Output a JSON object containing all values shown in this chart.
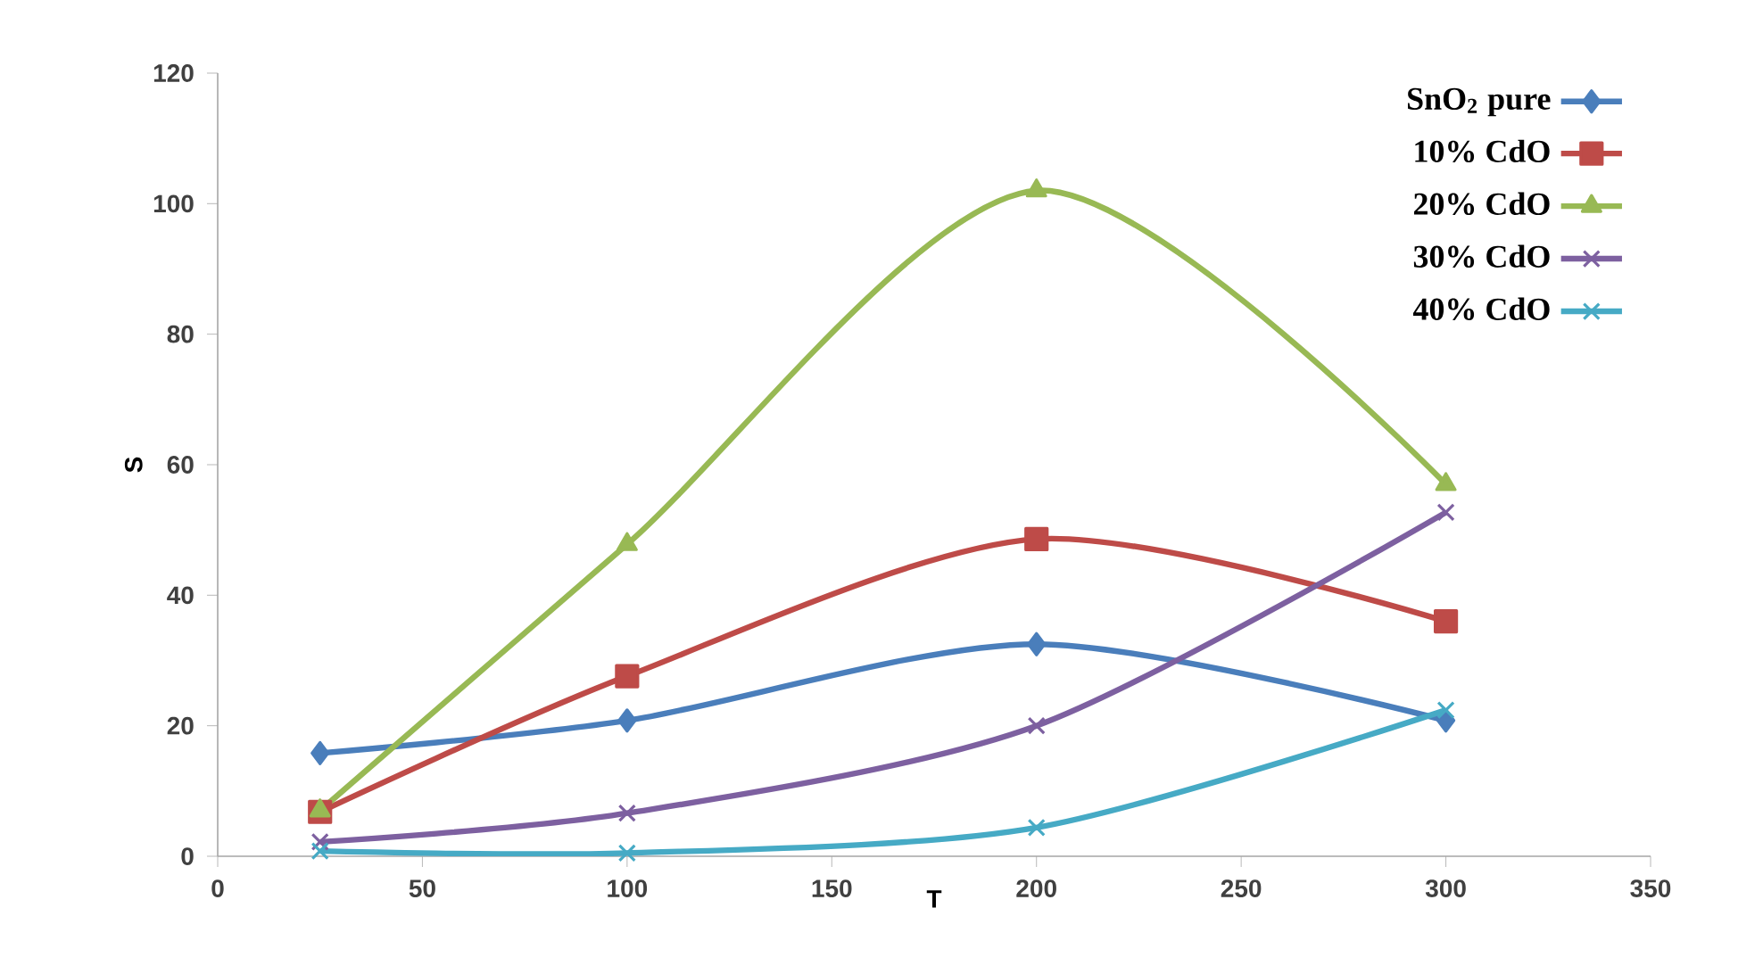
{
  "chart_data": {
    "type": "line",
    "xlabel": "T",
    "ylabel": "S",
    "x": [
      25,
      100,
      200,
      300
    ],
    "series": [
      {
        "name": "SnO$_{2}$ pure",
        "color": "#4a7ebb",
        "marker": "diamond",
        "values": [
          15.8,
          20.8,
          32.5,
          20.8
        ]
      },
      {
        "name": "10% CdO",
        "color": "#be4b48",
        "marker": "square",
        "values": [
          6.8,
          27.6,
          48.6,
          36
        ]
      },
      {
        "name": "20% CdO",
        "color": "#98b954",
        "marker": "triangle",
        "values": [
          7,
          47.8,
          102,
          57
        ]
      },
      {
        "name": "30% CdO",
        "color": "#7d60a0",
        "marker": "cross",
        "values": [
          2.2,
          6.6,
          20,
          52.7
        ]
      },
      {
        "name": "40% CdO",
        "color": "#46aac5",
        "marker": "cross",
        "values": [
          0.8,
          0.5,
          4.4,
          22.4
        ]
      }
    ],
    "xlim": [
      0,
      350
    ],
    "xticks": [
      0,
      50,
      100,
      150,
      200,
      250,
      300,
      350
    ],
    "ylim": [
      0,
      120
    ],
    "yticks": [
      0,
      20,
      40,
      60,
      80,
      100,
      120
    ],
    "grid": false,
    "legend": "top right",
    "line_style": "solid"
  }
}
